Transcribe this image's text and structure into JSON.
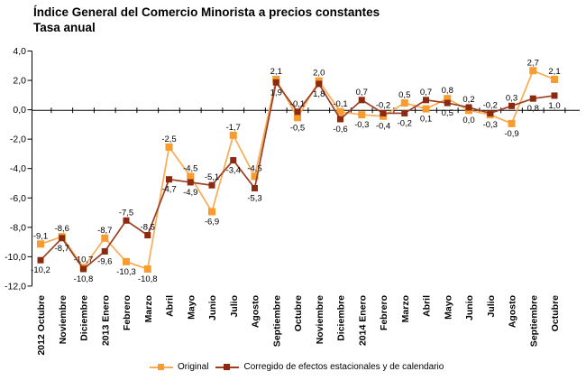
{
  "chart_data": {
    "type": "line",
    "title": "Índice General del Comercio Minorista a precios constantes",
    "subtitle": "Tasa anual",
    "xlabel": "",
    "ylabel": "",
    "ylim": [
      -12,
      4
    ],
    "grid": false,
    "legend_position": "bottom",
    "y_ticks": [
      "4,0",
      "2,0",
      "0,0",
      "-2,0",
      "-4,0",
      "-6,0",
      "-8,0",
      "-10,0",
      "-12,0"
    ],
    "categories": [
      "2012 Octubre",
      "Noviembre",
      "Diciembre",
      "2013 Enero",
      "Febrero",
      "Marzo",
      "Abril",
      "Mayo",
      "Junio",
      "Julio",
      "Agosto",
      "Septiembre",
      "Octubre",
      "Noviembre",
      "Diciembre",
      "2014 Enero",
      "Febrero",
      "Marzo",
      "Abril",
      "Mayo",
      "Junio",
      "Julio",
      "Agosto",
      "Septiembre",
      "Octubre"
    ],
    "series": [
      {
        "name": "Original",
        "color": "#F89C2F",
        "line_color": "#FAAB54",
        "values": [
          -9.1,
          -8.6,
          -10.7,
          -8.7,
          -10.3,
          -10.8,
          -2.5,
          -4.5,
          -6.9,
          -1.7,
          -4.5,
          2.1,
          -0.5,
          2.0,
          -0.1,
          -0.3,
          -0.4,
          0.5,
          0.1,
          0.8,
          0.0,
          -0.3,
          -0.9,
          2.7,
          2.1
        ],
        "labels": [
          "-9,1",
          "-8,6",
          "-10,7",
          "-8,7",
          "-10,3",
          "-10,8",
          "-2,5",
          "-4,5",
          "-6,9",
          "-1,7",
          "-4,5",
          "2,1",
          "-0,5",
          "2,0",
          "-0,1",
          "-0,3",
          "-0,4",
          "0,5",
          "0,1",
          "0,8",
          "0,0",
          "-0,3",
          "-0,9",
          "2,7",
          "2,1"
        ],
        "label_side": [
          "above",
          "above",
          "above",
          "above",
          "below",
          "below",
          "above",
          "above",
          "below",
          "above",
          "above",
          "above",
          "below",
          "above",
          "above",
          "below",
          "below",
          "above",
          "below",
          "above",
          "below",
          "below",
          "below",
          "above",
          "above"
        ]
      },
      {
        "name": "Corregido de efectos estacionales y de calendario",
        "color": "#8C2A10",
        "line_color": "#9A3E24",
        "values": [
          -10.2,
          -8.7,
          -10.8,
          -9.6,
          -7.5,
          -8.5,
          -4.7,
          -4.9,
          -5.1,
          -3.4,
          -5.3,
          1.9,
          -0.1,
          1.8,
          -0.6,
          0.7,
          -0.2,
          -0.2,
          0.7,
          0.5,
          0.2,
          -0.2,
          0.3,
          0.8,
          1.0
        ],
        "labels": [
          "-10,2",
          "-8,7",
          "-10,8",
          "-9,6",
          "-7,5",
          "-8,5",
          "-4,7",
          "-4,9",
          "-5,1",
          "-3,4",
          "-5,3",
          "1,9",
          "-0,1",
          "1,8",
          "-0,6",
          "0,7",
          "-0,2",
          "-0,2",
          "0,7",
          "0,5",
          "0,2",
          "-0,2",
          "0,3",
          "0,8",
          "1,0"
        ],
        "label_side": [
          "below",
          "below",
          "below",
          "below",
          "above",
          "above",
          "below",
          "below",
          "above",
          "below",
          "below",
          "below",
          "above",
          "below",
          "below",
          "above",
          "above",
          "below",
          "above",
          "below",
          "above",
          "above",
          "above",
          "below",
          "below"
        ]
      }
    ]
  }
}
